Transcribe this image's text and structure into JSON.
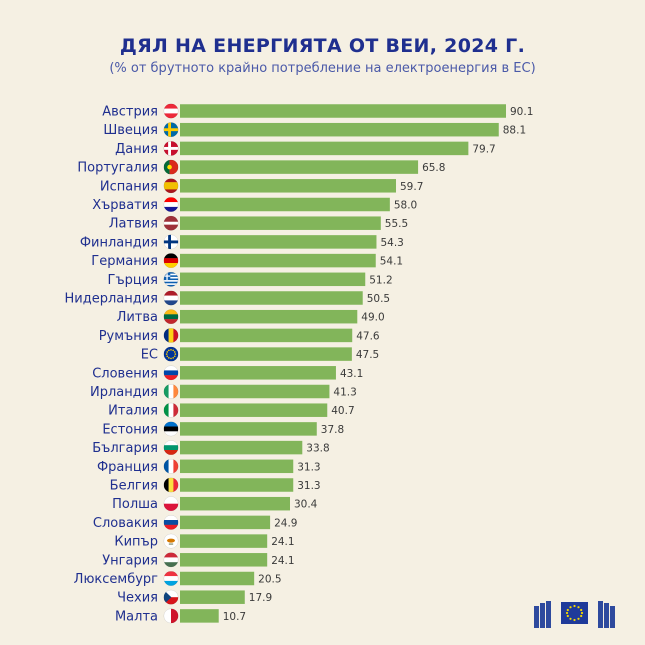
{
  "header": {
    "title": "ДЯЛ НА ЕНЕРГИЯТА ОТ ВЕИ, 2024 Г.",
    "subtitle": "(% от брутното крайно потребление на електроенергия в ЕС)"
  },
  "colors": {
    "bar": "#82b55a",
    "title": "#1f2f8f",
    "background": "#f5f0e3"
  },
  "chart_data": {
    "type": "bar",
    "orientation": "horizontal",
    "title": "ДЯЛ НА ЕНЕРГИЯТА ОТ ВЕИ, 2024 Г.",
    "subtitle": "(% от брутното крайно потребление на електроенергия в ЕС)",
    "xlabel": "",
    "ylabel": "",
    "xlim": [
      0,
      100
    ],
    "categories": [
      "Австрия",
      "Швеция",
      "Дания",
      "Португалия",
      "Испания",
      "Хърватия",
      "Латвия",
      "Финландия",
      "Германия",
      "Гърция",
      "Нидерландия",
      "Литва",
      "Румъния",
      "ЕС",
      "Словения",
      "Ирландия",
      "Италия",
      "Естония",
      "България",
      "Франция",
      "Белгия",
      "Полша",
      "Словакия",
      "Кипър",
      "Унгария",
      "Люксембург",
      "Чехия",
      "Малта"
    ],
    "values": [
      90.1,
      88.1,
      79.7,
      65.8,
      59.7,
      58.0,
      55.5,
      54.3,
      54.1,
      51.2,
      50.5,
      49.0,
      47.6,
      47.5,
      43.1,
      41.3,
      40.7,
      37.8,
      33.8,
      31.3,
      31.3,
      30.4,
      24.9,
      24.1,
      24.1,
      20.5,
      17.9,
      10.7
    ],
    "labels": [
      "90.1",
      "88.1",
      "79.7",
      "65.8",
      "59.7",
      "58.0",
      "55.5",
      "54.3",
      "54.1",
      "51.2",
      "50.5",
      "49.0",
      "47.6",
      "47.5",
      "43.1",
      "41.3",
      "40.7",
      "37.8",
      "33.8",
      "31.3",
      "31.3",
      "30.4",
      "24.9",
      "24.1",
      "24.1",
      "20.5",
      "17.9",
      "10.7"
    ],
    "flags": [
      "austria-flag",
      "sweden-flag",
      "denmark-flag",
      "portugal-flag",
      "spain-flag",
      "croatia-flag",
      "latvia-flag",
      "finland-flag",
      "germany-flag",
      "greece-flag",
      "netherlands-flag",
      "lithuania-flag",
      "romania-flag",
      "eu-flag",
      "slovenia-flag",
      "ireland-flag",
      "italy-flag",
      "estonia-flag",
      "bulgaria-flag",
      "france-flag",
      "belgium-flag",
      "poland-flag",
      "slovakia-flag",
      "cyprus-flag",
      "hungary-flag",
      "luxembourg-flag",
      "czechia-flag",
      "malta-flag"
    ]
  }
}
